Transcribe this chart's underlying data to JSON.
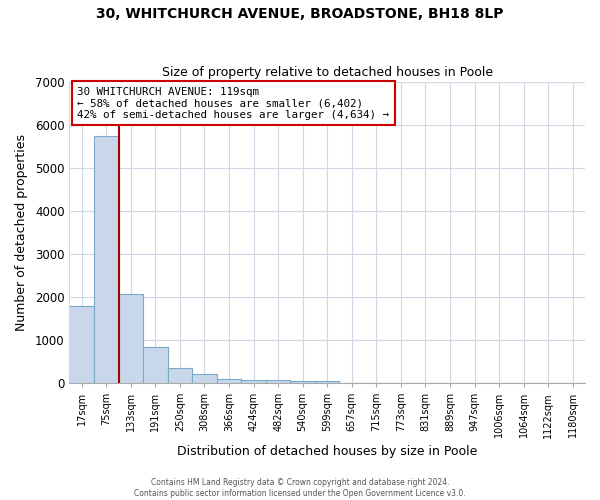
{
  "title": "30, WHITCHURCH AVENUE, BROADSTONE, BH18 8LP",
  "subtitle": "Size of property relative to detached houses in Poole",
  "xlabel": "Distribution of detached houses by size in Poole",
  "ylabel": "Number of detached properties",
  "bar_labels": [
    "17sqm",
    "75sqm",
    "133sqm",
    "191sqm",
    "250sqm",
    "308sqm",
    "366sqm",
    "424sqm",
    "482sqm",
    "540sqm",
    "599sqm",
    "657sqm",
    "715sqm",
    "773sqm",
    "831sqm",
    "889sqm",
    "947sqm",
    "1006sqm",
    "1064sqm",
    "1122sqm",
    "1180sqm"
  ],
  "bar_values": [
    1780,
    5750,
    2060,
    830,
    360,
    220,
    100,
    75,
    70,
    55,
    50,
    0,
    0,
    0,
    0,
    0,
    0,
    0,
    0,
    0,
    0
  ],
  "bar_color": "#c8d8ea",
  "bar_edge_color": "#7aaac8",
  "annotation_line1": "30 WHITCHURCH AVENUE: 119sqm",
  "annotation_line2": "← 58% of detached houses are smaller (6,402)",
  "annotation_line3": "42% of semi-detached houses are larger (4,634) →",
  "ylim": [
    0,
    7000
  ],
  "yticks": [
    0,
    1000,
    2000,
    3000,
    4000,
    5000,
    6000,
    7000
  ],
  "footer_line1": "Contains HM Land Registry data © Crown copyright and database right 2024.",
  "footer_line2": "Contains public sector information licensed under the Open Government Licence v3.0.",
  "background_color": "#ffffff",
  "plot_bg_color": "#ffffff",
  "grid_color": "#d0d8e8",
  "annotation_box_edge_color": "#cc0000",
  "red_line_color": "#aa0000"
}
